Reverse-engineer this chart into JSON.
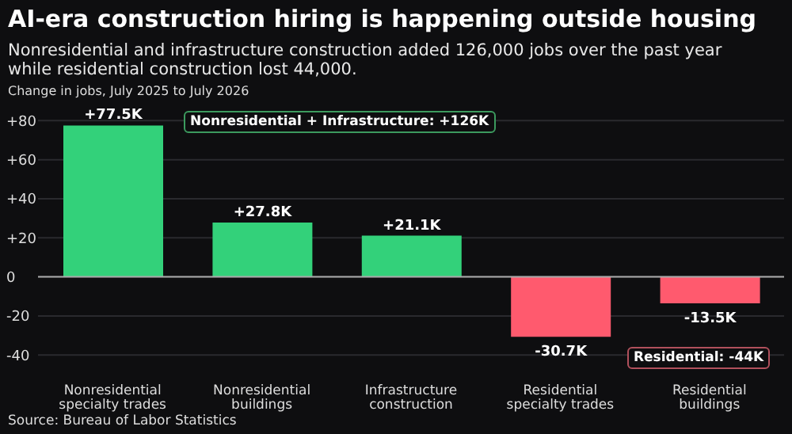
{
  "chart_data": {
    "type": "bar",
    "title": "AI-era construction hiring is happening outside housing",
    "subtitle": "Nonresidential and infrastructure construction added 126,000 jobs over the past year while residential construction lost 44,000.",
    "ylabel": "Change in jobs, July 2025 to July 2026",
    "categories": [
      "Nonresidential specialty trades",
      "Nonresidential buildings",
      "Infrastructure construction",
      "Residential specialty trades",
      "Residential buildings"
    ],
    "values": [
      77.5,
      27.8,
      21.1,
      -30.7,
      -13.5
    ],
    "value_labels": [
      "+77.5K",
      "+27.8K",
      "+21.1K",
      "-30.7K",
      "-13.5K"
    ],
    "colors": [
      "#33d17a",
      "#33d17a",
      "#33d17a",
      "#ff5a6e",
      "#ff5a6e"
    ],
    "ylim": [
      -48,
      85
    ],
    "yticks": [
      {
        "value": -40,
        "label": "-40"
      },
      {
        "value": -20,
        "label": "-20"
      },
      {
        "value": 0,
        "label": "0"
      },
      {
        "value": 20,
        "label": "+20"
      },
      {
        "value": 40,
        "label": "+40"
      },
      {
        "value": 60,
        "label": "+60"
      },
      {
        "value": 80,
        "label": "+80"
      }
    ],
    "grid": "y",
    "ref_lines": [
      {
        "axis": "y",
        "value": 0,
        "color": "#aaaaaa"
      }
    ],
    "annotations": [
      "Nonresidential + Infrastructure: +126K",
      "Residential: -44K",
      "Source: Bureau of Labor Statistics"
    ]
  }
}
